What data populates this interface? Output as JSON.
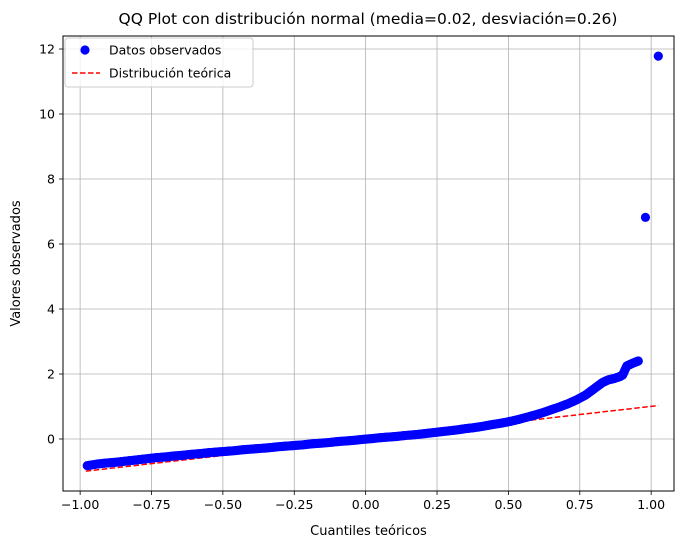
{
  "chart_data": {
    "type": "scatter",
    "title": "QQ Plot con distribución normal (media=0.02, desviación=0.26)",
    "xlabel": "Cuantiles teóricos",
    "ylabel": "Valores observados",
    "xlim": [
      -1.06,
      1.08
    ],
    "ylim": [
      -1.6,
      12.4
    ],
    "xticks": [
      -1.0,
      -0.75,
      -0.5,
      -0.25,
      0.0,
      0.25,
      0.5,
      0.75,
      1.0
    ],
    "xtick_labels": [
      "−1.00",
      "−0.75",
      "−0.50",
      "−0.25",
      "0.00",
      "0.25",
      "0.50",
      "0.75",
      "1.00"
    ],
    "yticks": [
      0,
      2,
      4,
      6,
      8,
      10,
      12
    ],
    "ytick_labels": [
      "0",
      "2",
      "4",
      "6",
      "8",
      "10",
      "12"
    ],
    "grid": true,
    "legend_position": "top-left",
    "series": [
      {
        "name": "Datos observados",
        "kind": "scatter",
        "color": "#0000ff",
        "points": [
          [
            -0.975,
            -0.82
          ],
          [
            -0.94,
            -0.77
          ],
          [
            -0.91,
            -0.74
          ],
          [
            -0.88,
            -0.72
          ],
          [
            -0.85,
            -0.69
          ],
          [
            -0.82,
            -0.66
          ],
          [
            -0.79,
            -0.63
          ],
          [
            -0.76,
            -0.6
          ],
          [
            -0.73,
            -0.57
          ],
          [
            -0.7,
            -0.55
          ],
          [
            -0.67,
            -0.52
          ],
          [
            -0.64,
            -0.5
          ],
          [
            -0.61,
            -0.47
          ],
          [
            -0.58,
            -0.45
          ],
          [
            -0.55,
            -0.42
          ],
          [
            -0.52,
            -0.4
          ],
          [
            -0.49,
            -0.38
          ],
          [
            -0.46,
            -0.36
          ],
          [
            -0.43,
            -0.33
          ],
          [
            -0.4,
            -0.31
          ],
          [
            -0.37,
            -0.29
          ],
          [
            -0.34,
            -0.27
          ],
          [
            -0.31,
            -0.24
          ],
          [
            -0.28,
            -0.22
          ],
          [
            -0.25,
            -0.2
          ],
          [
            -0.22,
            -0.18
          ],
          [
            -0.19,
            -0.15
          ],
          [
            -0.16,
            -0.13
          ],
          [
            -0.13,
            -0.11
          ],
          [
            -0.1,
            -0.08
          ],
          [
            -0.07,
            -0.06
          ],
          [
            -0.04,
            -0.04
          ],
          [
            -0.01,
            -0.01
          ],
          [
            0.02,
            0.01
          ],
          [
            0.05,
            0.04
          ],
          [
            0.08,
            0.06
          ],
          [
            0.11,
            0.08
          ],
          [
            0.14,
            0.11
          ],
          [
            0.17,
            0.13
          ],
          [
            0.2,
            0.16
          ],
          [
            0.23,
            0.19
          ],
          [
            0.26,
            0.22
          ],
          [
            0.29,
            0.25
          ],
          [
            0.32,
            0.28
          ],
          [
            0.35,
            0.32
          ],
          [
            0.38,
            0.35
          ],
          [
            0.41,
            0.39
          ],
          [
            0.44,
            0.44
          ],
          [
            0.47,
            0.48
          ],
          [
            0.5,
            0.53
          ],
          [
            0.53,
            0.59
          ],
          [
            0.56,
            0.66
          ],
          [
            0.59,
            0.73
          ],
          [
            0.62,
            0.81
          ],
          [
            0.65,
            0.9
          ],
          [
            0.68,
            0.99
          ],
          [
            0.71,
            1.09
          ],
          [
            0.74,
            1.21
          ],
          [
            0.77,
            1.35
          ],
          [
            0.79,
            1.48
          ],
          [
            0.81,
            1.61
          ],
          [
            0.83,
            1.74
          ],
          [
            0.85,
            1.82
          ],
          [
            0.87,
            1.86
          ],
          [
            0.89,
            1.92
          ],
          [
            0.9,
            1.97
          ],
          [
            0.915,
            2.25
          ],
          [
            0.935,
            2.33
          ],
          [
            0.955,
            2.4
          ],
          [
            0.98,
            6.82
          ],
          [
            1.025,
            11.78
          ]
        ]
      },
      {
        "name": "Distribución teórica",
        "kind": "line",
        "style": "dashed",
        "color": "#ff0000",
        "points": [
          [
            -0.98,
            -0.99
          ],
          [
            1.025,
            1.03
          ]
        ]
      }
    ]
  }
}
